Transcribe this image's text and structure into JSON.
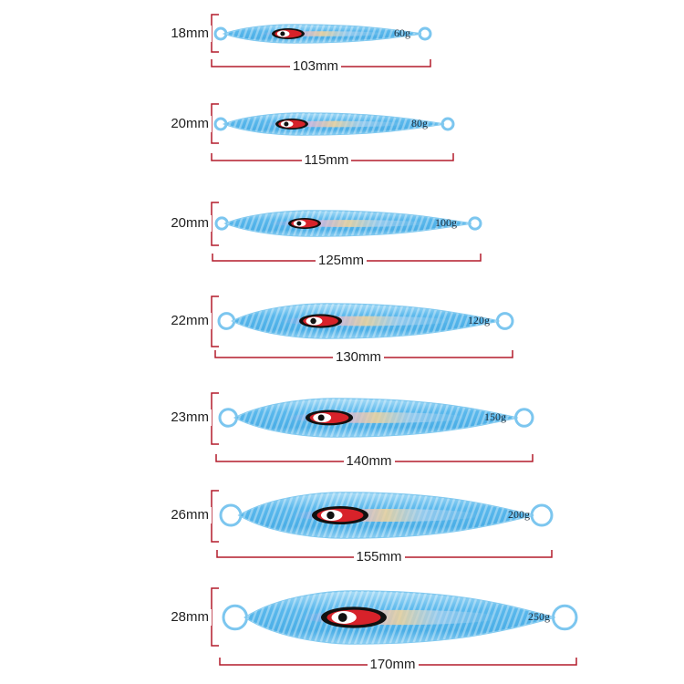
{
  "colors": {
    "lure_body": "#5ab8ec",
    "lure_light": "#bfe6fb",
    "lure_dark": "#2f8fcf",
    "eye_red": "#d7222a",
    "dimension_line": "#b31b2b",
    "text": "#222222"
  },
  "lures": [
    {
      "height": "18mm",
      "length": "103mm",
      "weight": "60g"
    },
    {
      "height": "20mm",
      "length": "115mm",
      "weight": "80g"
    },
    {
      "height": "20mm",
      "length": "125mm",
      "weight": "100g"
    },
    {
      "height": "22mm",
      "length": "130mm",
      "weight": "120g"
    },
    {
      "height": "23mm",
      "length": "140mm",
      "weight": "150g"
    },
    {
      "height": "26mm",
      "length": "155mm",
      "weight": "200g"
    },
    {
      "height": "28mm",
      "length": "170mm",
      "weight": "250g"
    }
  ]
}
